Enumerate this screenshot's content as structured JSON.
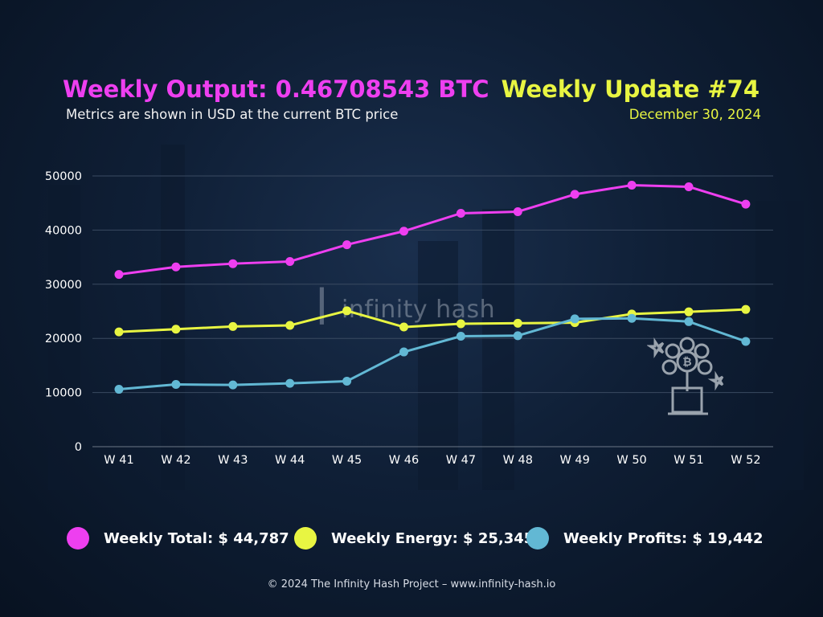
{
  "header": {
    "title_left": "Weekly Output: 0.46708543 BTC",
    "subtitle_left": "Metrics are shown in USD at the current BTC price",
    "title_right": "Weekly Update #74",
    "date": "December 30, 2024"
  },
  "watermark": {
    "mark": "|",
    "text": "infinity hash"
  },
  "chart_data": {
    "type": "line",
    "categories": [
      "W 41",
      "W 42",
      "W 43",
      "W 44",
      "W 45",
      "W 46",
      "W 47",
      "W 48",
      "W 49",
      "W 50",
      "W 51",
      "W 52"
    ],
    "yticks": [
      0,
      10000,
      20000,
      30000,
      40000,
      50000
    ],
    "ylim": [
      0,
      50000
    ],
    "grid": true,
    "series": [
      {
        "key": "total",
        "color": "#ee3ff0",
        "values": [
          31800,
          33200,
          33800,
          34200,
          37300,
          39800,
          43100,
          43400,
          46600,
          48300,
          48000,
          44787
        ]
      },
      {
        "key": "energy",
        "color": "#e8f542",
        "values": [
          21200,
          21700,
          22200,
          22400,
          25100,
          22100,
          22700,
          22800,
          22900,
          24500,
          24900,
          25345
        ]
      },
      {
        "key": "profits",
        "color": "#62b8d4",
        "values": [
          10600,
          11500,
          11400,
          11700,
          12100,
          17500,
          20400,
          20500,
          23600,
          23700,
          23100,
          19442
        ]
      }
    ]
  },
  "legend": [
    {
      "label": "Weekly Total: $ 44,787",
      "color": "#ee3ff0"
    },
    {
      "label": "Weekly Energy: $ 25,345",
      "color": "#e8f542"
    },
    {
      "label": "Weekly Profits: $ 19,442",
      "color": "#62b8d4"
    }
  ],
  "footer": "© 2024 The Infinity Hash Project – www.infinity-hash.io",
  "icons": [
    "bitcoin-plant-icon"
  ]
}
